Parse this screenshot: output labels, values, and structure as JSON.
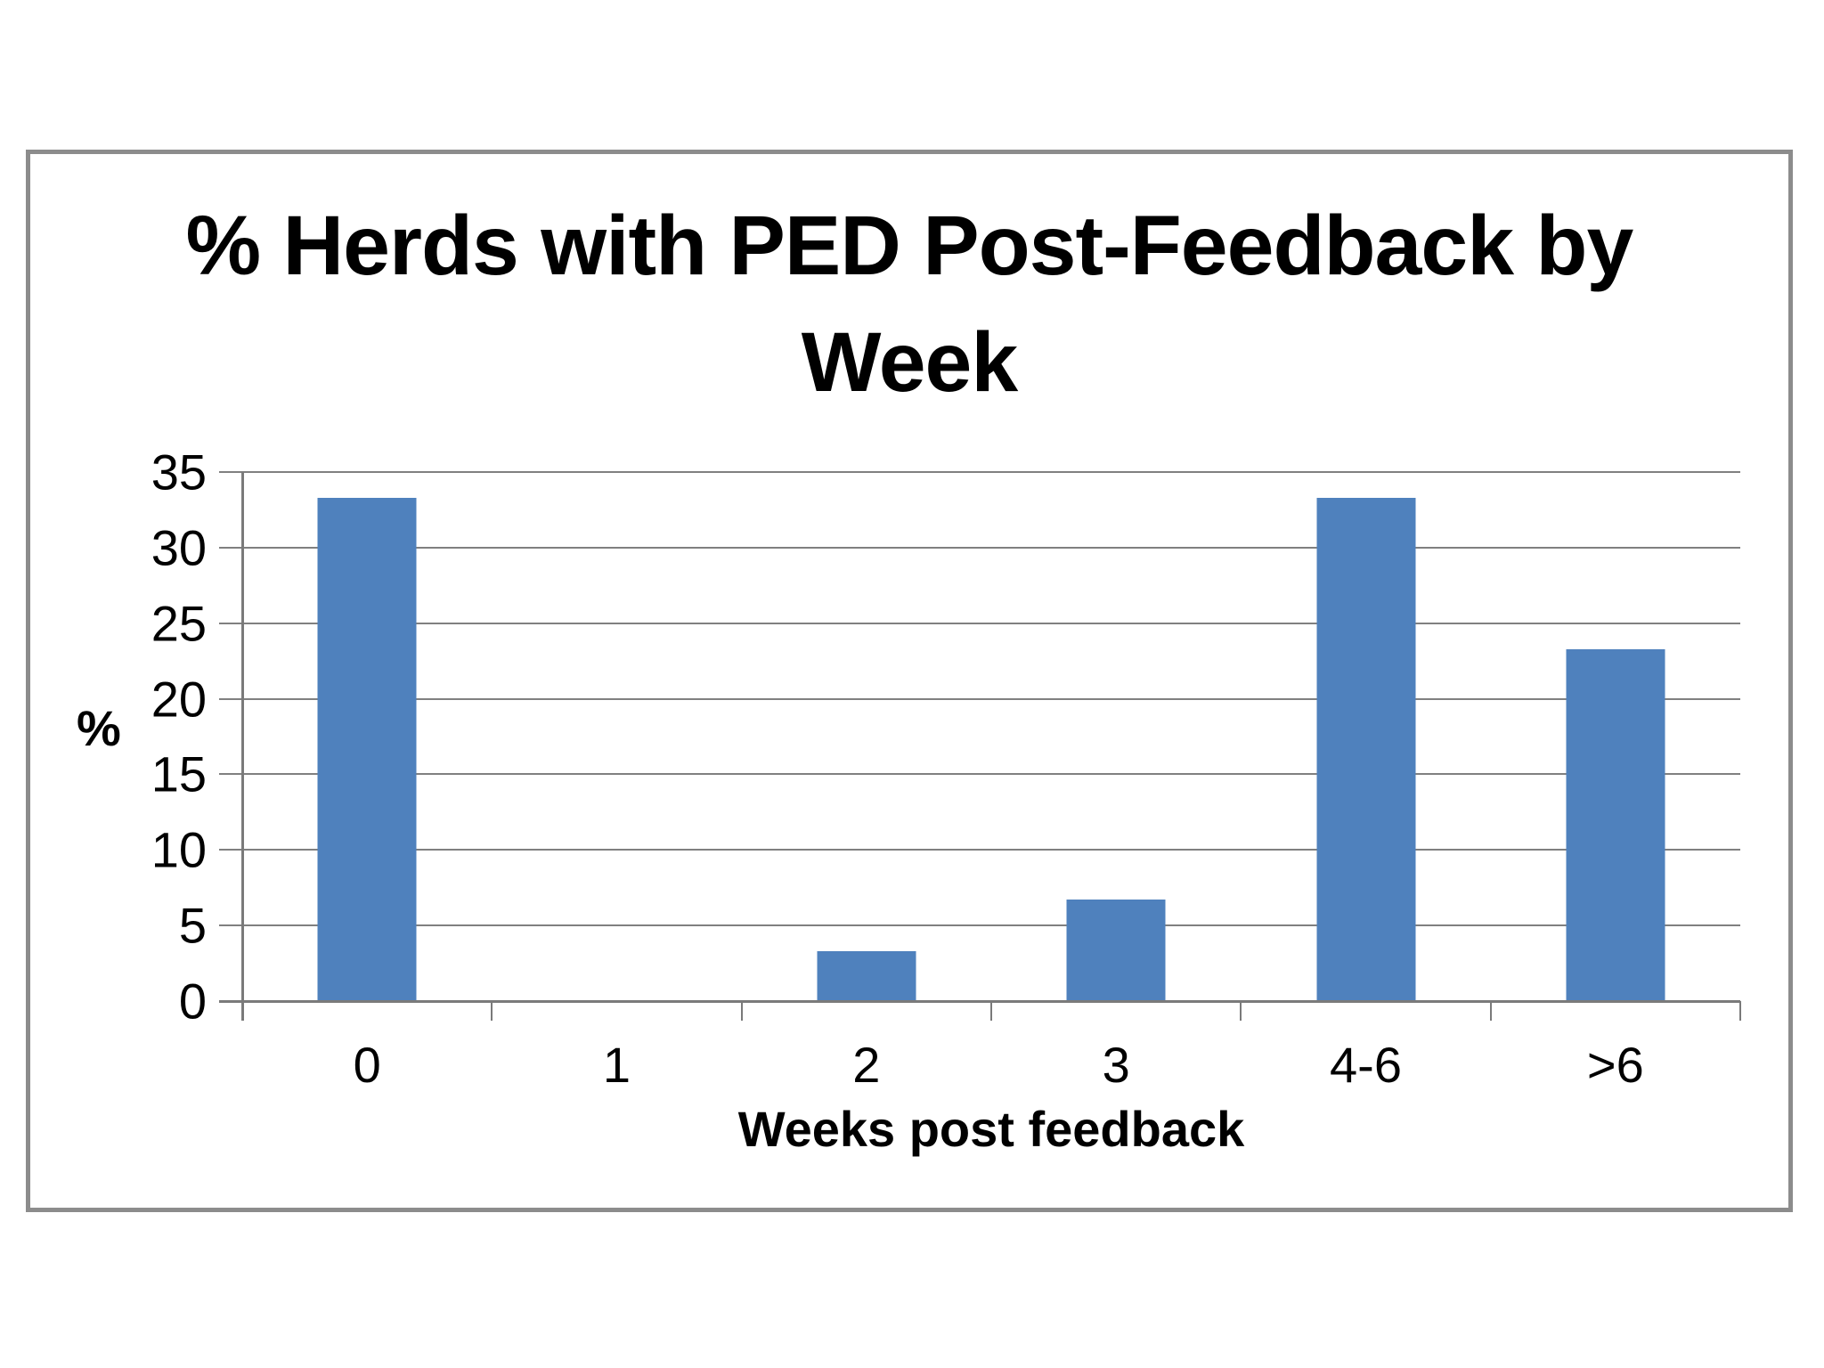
{
  "chart_data": {
    "type": "bar",
    "title": "% Herds with PED Post-Feedback by Week",
    "title_lines": [
      "% Herds with PED Post-Feedback by",
      "Week"
    ],
    "categories": [
      "0",
      "1",
      "2",
      "3",
      "4-6",
      ">6"
    ],
    "values": [
      33.3,
      0,
      3.3,
      6.7,
      33.3,
      23.3
    ],
    "xlabel": "Weeks post feedback",
    "ylabel": "%",
    "ylim": [
      0,
      35
    ],
    "yticks": [
      0,
      5,
      10,
      15,
      20,
      25,
      30,
      35
    ],
    "grid": "horizontal",
    "legend_position": "none",
    "colors": {
      "bar": "#4F81BD",
      "gridline": "#808080",
      "axis": "#7A7A7A",
      "frame_border": "#8C8C8C",
      "text": "#000000",
      "background": "#FFFFFF"
    }
  }
}
